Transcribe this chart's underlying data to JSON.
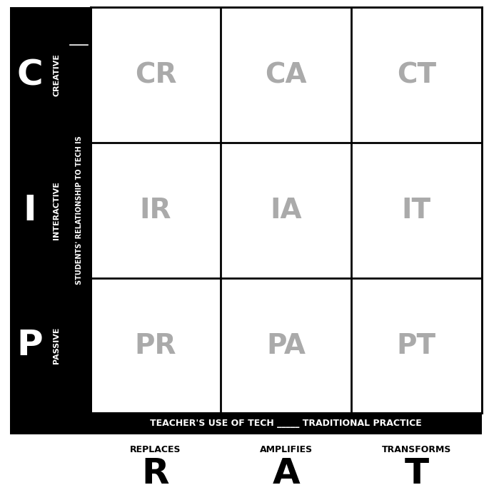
{
  "cell_labels": [
    [
      "CR",
      "CA",
      "CT"
    ],
    [
      "IR",
      "IA",
      "IT"
    ],
    [
      "PR",
      "PA",
      "PT"
    ]
  ],
  "row_letters": [
    "C",
    "I",
    "P"
  ],
  "row_labels": [
    "CREATIVE",
    "INTERACTIVE",
    "PASSIVE"
  ],
  "col_letters": [
    "R",
    "A",
    "T"
  ],
  "col_labels": [
    "REPLACES",
    "AMPLIFIES",
    "TRANSFORMS"
  ],
  "y_axis_label": "STUDENTS' RELATIONSHIP TO TECH IS",
  "x_axis_label": "TEACHER'S USE OF TECH _____ TRADITIONAL PRACTICE",
  "cell_text_color": "#aaaaaa",
  "cell_text_fontsize": 28,
  "bg_black": "#000000",
  "bg_white": "#ffffff",
  "row_letter_fontsize": 36,
  "col_letter_fontsize": 36,
  "row_label_fontsize": 8,
  "col_label_fontsize": 9,
  "banner_fontsize": 9,
  "students_label_fontsize": 7
}
